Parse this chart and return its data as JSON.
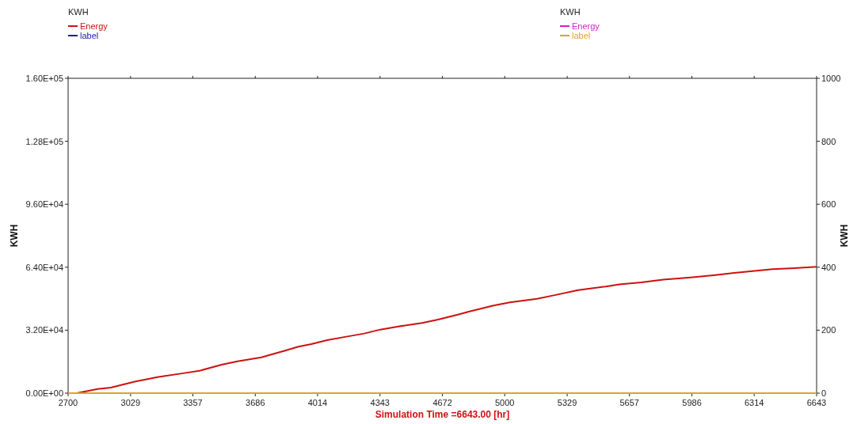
{
  "chart_data": {
    "type": "line",
    "xlabel": "Simulation Time =6643.00 [hr]",
    "ylabel": "KWH",
    "y2label": "KWH",
    "legend_title": "KWH",
    "legend": "top",
    "xlim": [
      2700,
      6643
    ],
    "xticks": [
      2700,
      3029,
      3357,
      3686,
      4014,
      4343,
      4672,
      5000,
      5329,
      5657,
      5986,
      6314,
      6643
    ],
    "ylim": [
      0,
      160000
    ],
    "yticks": [
      {
        "value": 0,
        "label": "0.00E+00"
      },
      {
        "value": 32000,
        "label": "3.20E+04"
      },
      {
        "value": 64000,
        "label": "6.40E+04"
      },
      {
        "value": 96000,
        "label": "9.60E+04"
      },
      {
        "value": 128000,
        "label": "1.28E+05"
      },
      {
        "value": 160000,
        "label": "1.60E+05"
      }
    ],
    "y2lim": [
      0,
      1000
    ],
    "y2ticks": [
      0,
      200,
      400,
      600,
      800,
      1000
    ],
    "grid": false,
    "line_style": "solid",
    "marker": "none",
    "series": [
      {
        "name": "Energy",
        "color": "#cc1111",
        "x": [
          2745,
          2856,
          2925,
          3050,
          3176,
          3313,
          3397,
          3509,
          3593,
          3718,
          3843,
          3913,
          3981,
          4064,
          4177,
          4260,
          4344,
          4440,
          4565,
          4649,
          4761,
          4810,
          4941,
          5027,
          5170,
          5258,
          5387,
          5532,
          5604,
          5719,
          5834,
          5979,
          6109,
          6209,
          6325,
          6411,
          6526,
          6643
        ],
        "values": [
          0,
          2100,
          2800,
          5800,
          8200,
          10200,
          11500,
          14500,
          16200,
          18200,
          21600,
          23600,
          24900,
          26900,
          28900,
          30300,
          32300,
          33900,
          35700,
          37400,
          40100,
          41400,
          44500,
          46100,
          47900,
          49700,
          52400,
          54200,
          55300,
          56300,
          57700,
          58800,
          60000,
          61100,
          62200,
          63000,
          63500,
          64200
        ]
      },
      {
        "name": "label",
        "color": "#1a1aa0"
      },
      {
        "name": "Energy",
        "color": "#cc22cc",
        "axis": "y2"
      },
      {
        "name": "label",
        "color": "#e0a030",
        "axis": "y2",
        "x": [
          2700,
          6643
        ],
        "values": [
          0,
          0
        ]
      }
    ]
  }
}
